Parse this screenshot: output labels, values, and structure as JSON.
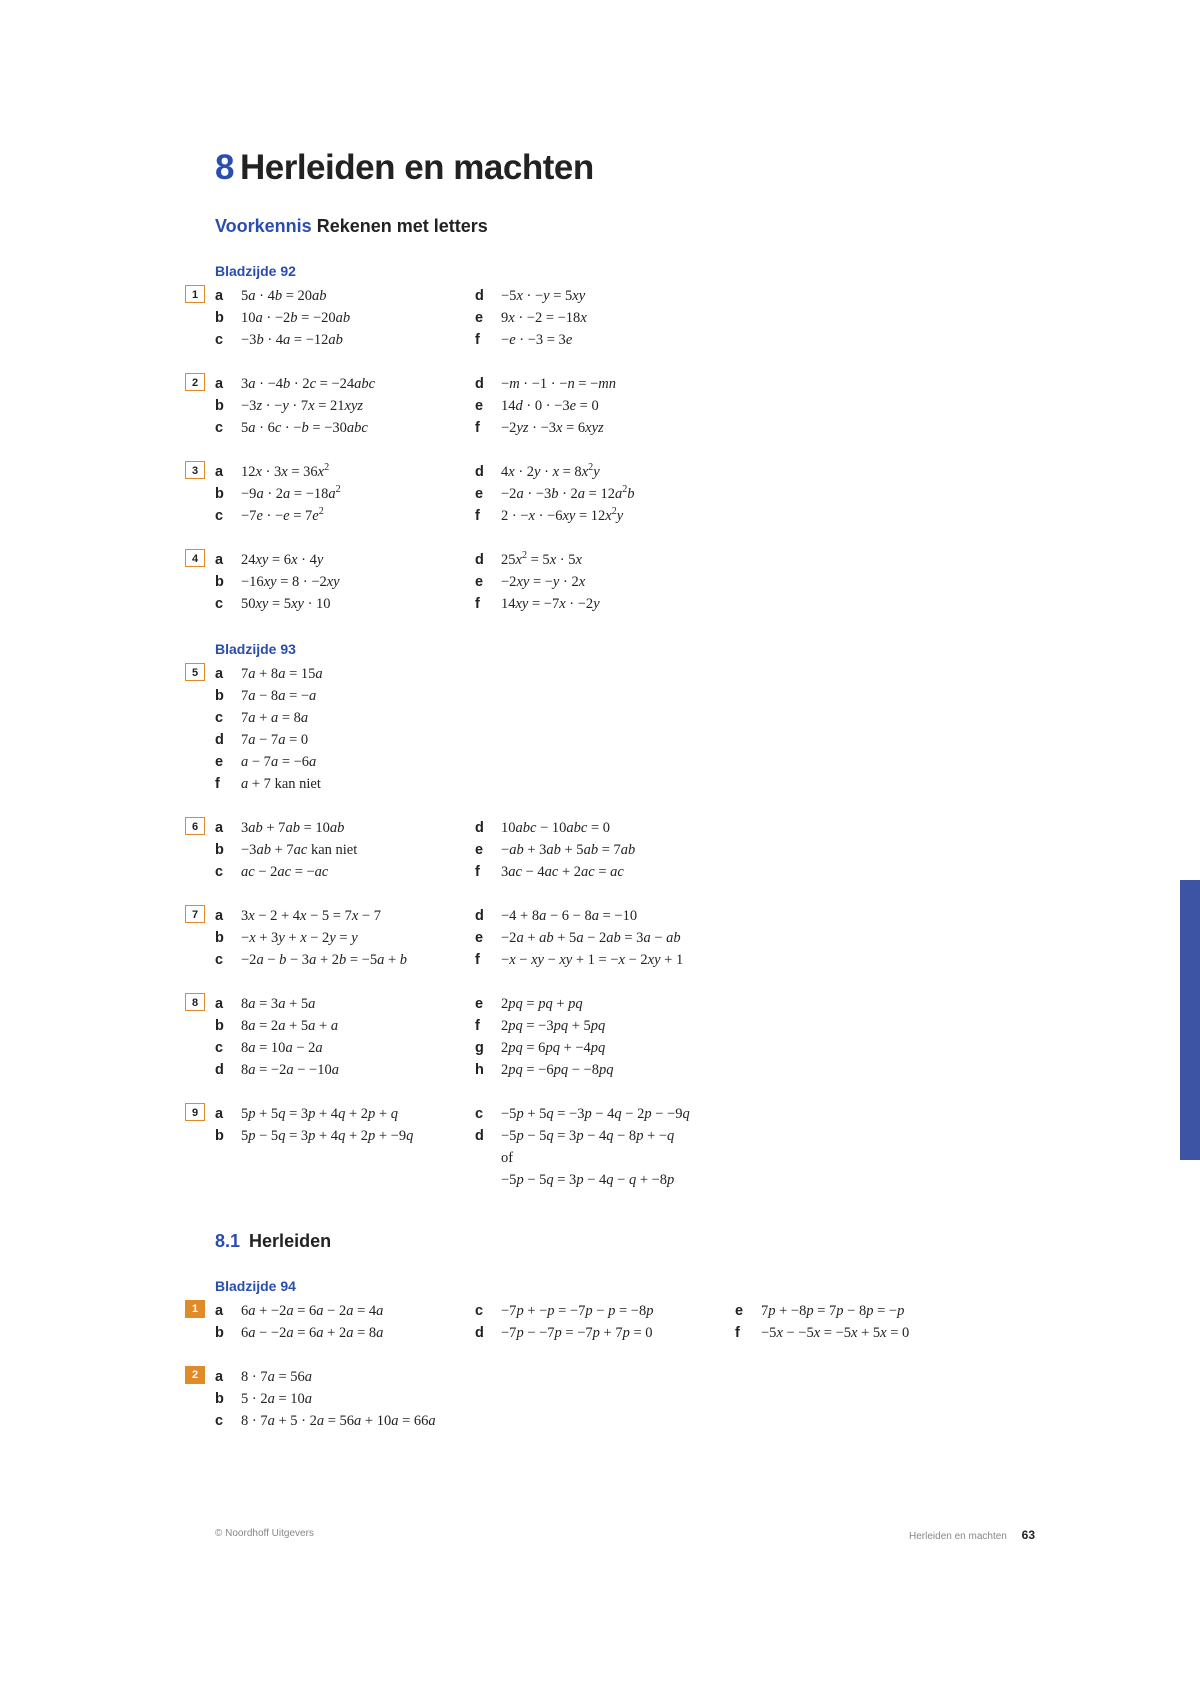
{
  "colors": {
    "brand_blue": "#2a4db0",
    "box_orange": "#e08a2a",
    "tab_blue": "#3d54a5",
    "text": "#222222",
    "footer_grey": "#888888",
    "background": "#ffffff"
  },
  "header": {
    "chapter_number": "8",
    "chapter_title": "Herleiden en machten",
    "subtitle_prefix": "Voorkennis",
    "subtitle_rest": "Rekenen met letters"
  },
  "section_81": {
    "number": "8.1",
    "title": "Herleiden"
  },
  "page_labels": {
    "p92": "Bladzijde 92",
    "p93": "Bladzijde 93",
    "p94": "Bladzijde 94"
  },
  "footer": {
    "left": "© Noordhoff Uitgevers",
    "right_text": "Herleiden en machten",
    "page_number": "63"
  },
  "ex": {
    "1": {
      "cols": [
        [
          {
            "l": "a",
            "m": "5<i>a</i> · 4<i>b</i> = 20<i>ab</i>"
          },
          {
            "l": "b",
            "m": "10<i>a</i> · −2<i>b</i> = −20<i>ab</i>"
          },
          {
            "l": "c",
            "m": "−3<i>b</i> · 4<i>a</i> = −12<i>ab</i>"
          }
        ],
        [
          {
            "l": "d",
            "m": "−5<i>x</i> · −<i>y</i> = 5<i>xy</i>"
          },
          {
            "l": "e",
            "m": "9<i>x</i> · −2 = −18<i>x</i>"
          },
          {
            "l": "f",
            "m": "−<i>e</i> · −3 = 3<i>e</i>"
          }
        ]
      ]
    },
    "2": {
      "cols": [
        [
          {
            "l": "a",
            "m": "3<i>a</i> · −4<i>b</i> · 2<i>c</i> = −24<i>abc</i>"
          },
          {
            "l": "b",
            "m": "−3<i>z</i> · −<i>y</i> · 7<i>x</i> = 21<i>xyz</i>"
          },
          {
            "l": "c",
            "m": "5<i>a</i> · 6<i>c</i> · −<i>b</i> = −30<i>abc</i>"
          }
        ],
        [
          {
            "l": "d",
            "m": "−<i>m</i> · −1 · −<i>n</i> = −<i>mn</i>"
          },
          {
            "l": "e",
            "m": "14<i>d</i> · 0 · −3<i>e</i> = 0"
          },
          {
            "l": "f",
            "m": "−2<i>yz</i> · −3<i>x</i> = 6<i>xyz</i>"
          }
        ]
      ]
    },
    "3": {
      "cols": [
        [
          {
            "l": "a",
            "m": "12<i>x</i> · 3<i>x</i> = 36<i>x</i><sup>2</sup>"
          },
          {
            "l": "b",
            "m": "−9<i>a</i> · 2<i>a</i> = −18<i>a</i><sup>2</sup>"
          },
          {
            "l": "c",
            "m": "−7<i>e</i> · −<i>e</i> = 7<i>e</i><sup>2</sup>"
          }
        ],
        [
          {
            "l": "d",
            "m": "4<i>x</i> · 2<i>y</i> · <i>x</i> = 8<i>x</i><sup>2</sup><i>y</i>"
          },
          {
            "l": "e",
            "m": "−2<i>a</i> · −3<i>b</i> · 2<i>a</i> = 12<i>a</i><sup>2</sup><i>b</i>"
          },
          {
            "l": "f",
            "m": "2 · −<i>x</i> · −6<i>xy</i> = 12<i>x</i><sup>2</sup><i>y</i>"
          }
        ]
      ]
    },
    "4": {
      "cols": [
        [
          {
            "l": "a",
            "m": "24<i>xy</i> = 6<i>x</i> · 4<i>y</i>"
          },
          {
            "l": "b",
            "m": "−16<i>xy</i> = 8 · −2<i>xy</i>"
          },
          {
            "l": "c",
            "m": "50<i>xy</i> = 5<i>xy</i> · 10"
          }
        ],
        [
          {
            "l": "d",
            "m": "25<i>x</i><sup>2</sup> = 5<i>x</i> · 5<i>x</i>"
          },
          {
            "l": "e",
            "m": "−2<i>xy</i> = −<i>y</i> · 2<i>x</i>"
          },
          {
            "l": "f",
            "m": "14<i>xy</i> = −7<i>x</i> · −2<i>y</i>"
          }
        ]
      ]
    },
    "5": {
      "cols": [
        [
          {
            "l": "a",
            "m": "7<i>a</i> + 8<i>a</i> = 15<i>a</i>"
          },
          {
            "l": "b",
            "m": "7<i>a</i> − 8<i>a</i> = −<i>a</i>"
          },
          {
            "l": "c",
            "m": "7<i>a</i> + <i>a</i> = 8<i>a</i>"
          },
          {
            "l": "d",
            "m": "7<i>a</i> − 7<i>a</i> = 0"
          },
          {
            "l": "e",
            "m": "<i>a</i> − 7<i>a</i> = −6<i>a</i>"
          },
          {
            "l": "f",
            "m": "<i>a</i> + 7 kan niet"
          }
        ]
      ]
    },
    "6": {
      "cols": [
        [
          {
            "l": "a",
            "m": "3<i>ab</i> + 7<i>ab</i> = 10<i>ab</i>"
          },
          {
            "l": "b",
            "m": "−3<i>ab</i> + 7<i>ac</i> kan niet"
          },
          {
            "l": "c",
            "m": "<i>ac</i> − 2<i>ac</i> = −<i>ac</i>"
          }
        ],
        [
          {
            "l": "d",
            "m": "10<i>abc</i> − 10<i>abc</i> = 0"
          },
          {
            "l": "e",
            "m": "−<i>ab</i> + 3<i>ab</i> + 5<i>ab</i> = 7<i>ab</i>"
          },
          {
            "l": "f",
            "m": "3<i>ac</i> − 4<i>ac</i> + 2<i>ac</i> = <i>ac</i>"
          }
        ]
      ]
    },
    "7": {
      "cols": [
        [
          {
            "l": "a",
            "m": "3<i>x</i> − 2 + 4<i>x</i> − 5 = 7<i>x</i> − 7"
          },
          {
            "l": "b",
            "m": "−<i>x</i> + 3<i>y</i> + <i>x</i> − 2<i>y</i> = <i>y</i>"
          },
          {
            "l": "c",
            "m": "−2<i>a</i> − <i>b</i> − 3<i>a</i> + 2<i>b</i> = −5<i>a</i> + <i>b</i>"
          }
        ],
        [
          {
            "l": "d",
            "m": "−4 + 8<i>a</i> − 6 − 8<i>a</i> = −10"
          },
          {
            "l": "e",
            "m": "−2<i>a</i> + <i>ab</i> + 5<i>a</i> − 2<i>ab</i> = 3<i>a</i> − <i>ab</i>"
          },
          {
            "l": "f",
            "m": "−<i>x</i> − <i>xy</i> − <i>xy</i> + 1 = −<i>x</i> − 2<i>xy</i> + 1"
          }
        ]
      ]
    },
    "8": {
      "cols": [
        [
          {
            "l": "a",
            "m": "8<i>a</i> = 3<i>a</i> + 5<i>a</i>"
          },
          {
            "l": "b",
            "m": "8<i>a</i> = 2<i>a</i> + 5<i>a</i> + <i>a</i>"
          },
          {
            "l": "c",
            "m": "8<i>a</i> = 10<i>a</i> − 2<i>a</i>"
          },
          {
            "l": "d",
            "m": "8<i>a</i> = −2<i>a</i> − −10<i>a</i>"
          }
        ],
        [
          {
            "l": "e",
            "m": "2<i>pq</i> = <i>pq</i> + <i>pq</i>"
          },
          {
            "l": "f",
            "m": "2<i>pq</i> = −3<i>pq</i> + 5<i>pq</i>"
          },
          {
            "l": "g",
            "m": "2<i>pq</i> = 6<i>pq</i> + −4<i>pq</i>"
          },
          {
            "l": "h",
            "m": "2<i>pq</i> = −6<i>pq</i> − −8<i>pq</i>"
          }
        ]
      ]
    },
    "9": {
      "cols": [
        [
          {
            "l": "a",
            "m": "5<i>p</i> + 5<i>q</i> = 3<i>p</i> + 4<i>q</i> + 2<i>p</i> + <i>q</i>"
          },
          {
            "l": "b",
            "m": "5<i>p</i> − 5<i>q</i> = 3<i>p</i> + 4<i>q</i> + 2<i>p</i> + −9<i>q</i>"
          }
        ],
        [
          {
            "l": "c",
            "m": "−5<i>p</i> + 5<i>q</i> = −3<i>p</i> − 4<i>q</i> − 2<i>p</i> − −9<i>q</i>"
          },
          {
            "l": "d",
            "m": "−5<i>p</i> − 5<i>q</i> = 3<i>p</i> − 4<i>q</i> − 8<i>p</i> + −<i>q</i>"
          },
          {
            "l": "",
            "m": "of"
          },
          {
            "l": "",
            "m": "−5<i>p</i> − 5<i>q</i> = 3<i>p</i> − 4<i>q</i> − <i>q</i> + −8<i>p</i>"
          }
        ]
      ]
    },
    "s1": {
      "cols": [
        [
          {
            "l": "a",
            "m": "6<i>a</i> + −2<i>a</i> = 6<i>a</i> − 2<i>a</i> = 4<i>a</i>"
          },
          {
            "l": "b",
            "m": "6<i>a</i> − −2<i>a</i> = 6<i>a</i> + 2<i>a</i> = 8<i>a</i>"
          }
        ],
        [
          {
            "l": "c",
            "m": "−7<i>p</i> + −<i>p</i> = −7<i>p</i> − <i>p</i> = −8<i>p</i>"
          },
          {
            "l": "d",
            "m": "−7<i>p</i> − −7<i>p</i> = −7<i>p</i> + 7<i>p</i> = 0"
          }
        ],
        [
          {
            "l": "e",
            "m": "7<i>p</i> + −8<i>p</i> = 7<i>p</i> − 8<i>p</i> = −<i>p</i>"
          },
          {
            "l": "f",
            "m": "−5<i>x</i> − −5<i>x</i> = −5<i>x</i> + 5<i>x</i> = 0"
          }
        ]
      ]
    },
    "s2": {
      "cols": [
        [
          {
            "l": "a",
            "m": "8 · 7<i>a</i> = 56<i>a</i>"
          },
          {
            "l": "b",
            "m": "5 · 2<i>a</i> = 10<i>a</i>"
          },
          {
            "l": "c",
            "m": "8 · 7<i>a</i> + 5 · 2<i>a</i> = 56<i>a</i> + 10<i>a</i> = 66<i>a</i>"
          }
        ]
      ]
    }
  },
  "ex_numbers": {
    "1": "1",
    "2": "2",
    "3": "3",
    "4": "4",
    "5": "5",
    "6": "6",
    "7": "7",
    "8": "8",
    "9": "9",
    "s1": "1",
    "s2": "2"
  }
}
